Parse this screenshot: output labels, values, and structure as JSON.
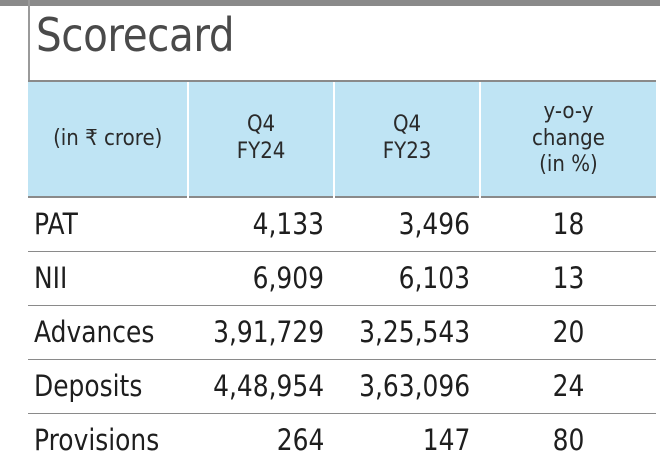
{
  "chart_data": {
    "type": "table",
    "title": "Scorecard",
    "columns": [
      "(in ₹ crore)",
      "Q4\nFY24",
      "Q4\nFY23",
      "y-o-y\nchange\n(in %)"
    ],
    "header_lines": [
      [
        "(in ₹ crore)"
      ],
      [
        "Q4",
        "FY24"
      ],
      [
        "Q4",
        "FY23"
      ],
      [
        "y-o-y",
        "change",
        "(in %)"
      ]
    ],
    "rows": [
      {
        "label": "PAT",
        "q4fy24": "4,133",
        "q4fy23": "3,496",
        "yoy": "18"
      },
      {
        "label": "NII",
        "q4fy24": "6,909",
        "q4fy23": "6,103",
        "yoy": "13"
      },
      {
        "label": "Advances",
        "q4fy24": "3,91,729",
        "q4fy23": "3,25,543",
        "yoy": "20"
      },
      {
        "label": "Deposits",
        "q4fy24": "4,48,954",
        "q4fy23": "3,63,096",
        "yoy": "24"
      },
      {
        "label": "Provisions",
        "q4fy24": "264",
        "q4fy23": "147",
        "yoy": "80"
      }
    ]
  },
  "colors": {
    "header_background": "#bfe4f4",
    "rule": "#8a8a8a",
    "title_text": "#4a4a4a"
  }
}
